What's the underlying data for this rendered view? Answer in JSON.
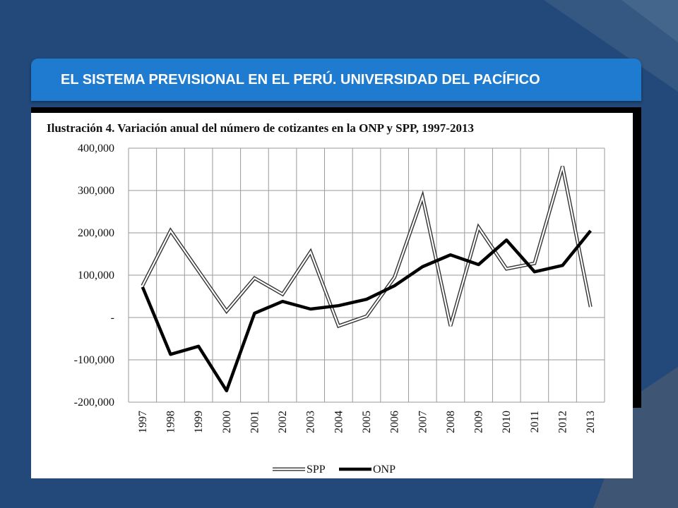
{
  "slide": {
    "title": "EL SISTEMA PREVISIONAL EN EL PERÚ. UNIVERSIDAD DEL PACÍFICO"
  },
  "colors": {
    "background": "#22497a",
    "title_bar": "#1f7bcf",
    "title_text": "#ffffff"
  },
  "chart_data": {
    "type": "line",
    "title": "Ilustración 4. Variación anual del número de cotizantes en la ONP y SPP, 1997-2013",
    "x": [
      "1997",
      "1998",
      "1999",
      "2000",
      "2001",
      "2002",
      "2003",
      "2004",
      "2005",
      "2006",
      "2007",
      "2008",
      "2009",
      "2010",
      "2011",
      "2012",
      "2013"
    ],
    "ylim": [
      -200000,
      400000
    ],
    "yticks": [
      400000,
      300000,
      200000,
      100000,
      0,
      -100000,
      -200000
    ],
    "ytick_labels": [
      "400,000",
      "300,000",
      "200,000",
      "100,000",
      "-",
      "-100,000",
      "-200,000"
    ],
    "grid": true,
    "legend": "bottom",
    "series": [
      {
        "name": "SPP",
        "style": "double-line",
        "values": [
          75000,
          205000,
          110000,
          15000,
          93000,
          55000,
          155000,
          -20000,
          3000,
          95000,
          285000,
          -20000,
          213000,
          115000,
          128000,
          357000,
          25000
        ]
      },
      {
        "name": "ONP",
        "style": "thick-black",
        "values": [
          72000,
          -87000,
          -68000,
          -173000,
          10000,
          38000,
          20000,
          28000,
          43000,
          75000,
          120000,
          148000,
          125000,
          183000,
          108000,
          123000,
          205000
        ]
      }
    ]
  }
}
